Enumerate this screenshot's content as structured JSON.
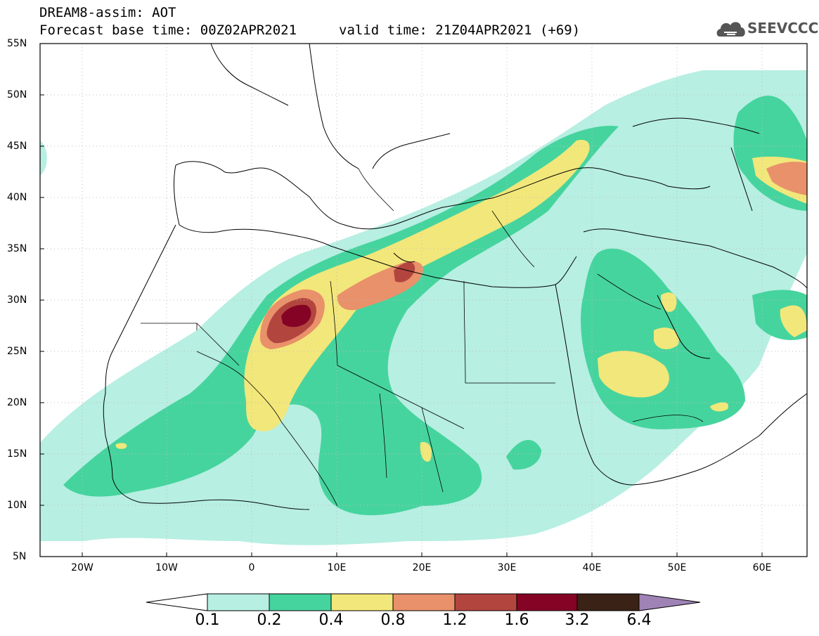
{
  "header": {
    "line1": "DREAM8-assim: AOT",
    "line2": "Forecast base time: 00Z02APR2021",
    "valid": "valid time: 21Z04APR2021 (+69)"
  },
  "logo": {
    "text": "SEEVCCC",
    "icon": "cloud-icon"
  },
  "axes": {
    "lat_labels": [
      "55N",
      "50N",
      "45N",
      "40N",
      "35N",
      "30N",
      "25N",
      "20N",
      "15N",
      "10N",
      "5N"
    ],
    "lon_labels": [
      "20W",
      "10W",
      "0",
      "10E",
      "20E",
      "30E",
      "40E",
      "50E",
      "60E"
    ]
  },
  "colorbar": {
    "labels": [
      "0.1",
      "0.2",
      "0.4",
      "0.8",
      "1.2",
      "1.6",
      "3.2",
      "6.4"
    ],
    "colors": [
      "#b7efe2",
      "#46d49e",
      "#f2e77a",
      "#e9916a",
      "#b3453f",
      "#850425",
      "#3b2216",
      "#9f83b6"
    ]
  },
  "map_colors": {
    "land": "#ffffff",
    "borders": "#000000",
    "grid": "#bdbdbd"
  }
}
